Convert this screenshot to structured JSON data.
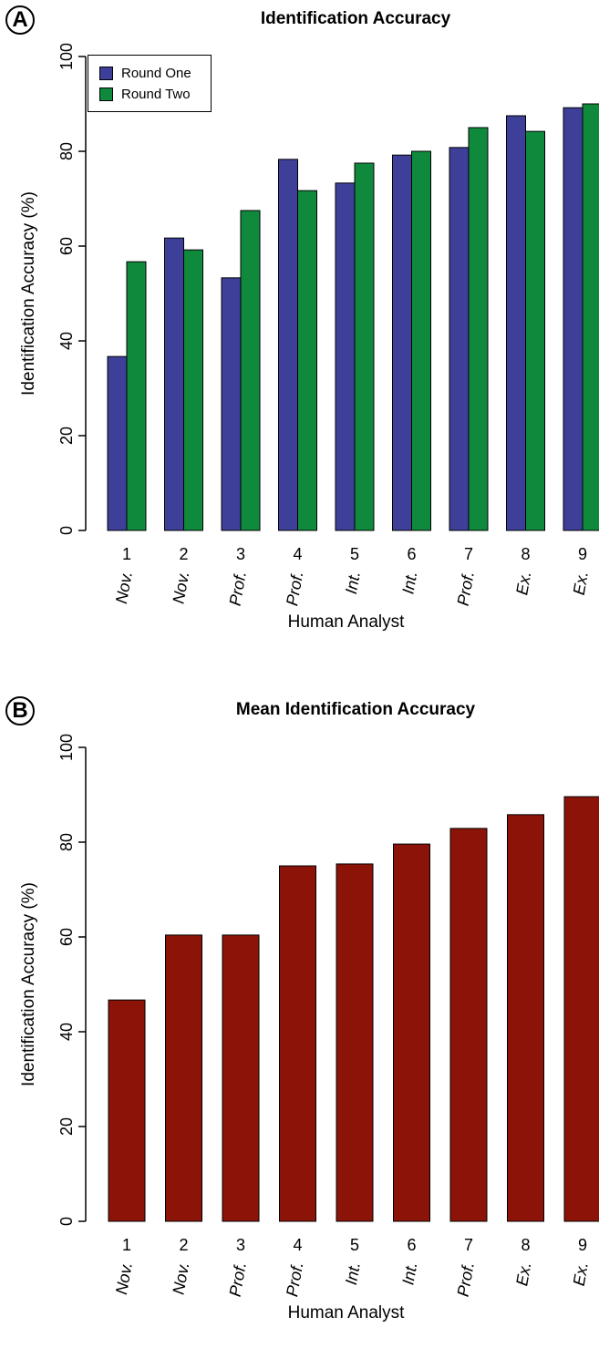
{
  "colors": {
    "round_one": "#3e3f98",
    "round_two": "#0f8a3c",
    "mean": "#8b1308"
  },
  "chart_data": [
    {
      "panel": "A",
      "type": "bar",
      "title": "Identification Accuracy",
      "xlabel": "Human Analyst",
      "ylabel": "Identification Accuracy (%)",
      "ylim": [
        0,
        100
      ],
      "yticks": [
        "0",
        "20",
        "40",
        "60",
        "80",
        "100"
      ],
      "categories": [
        "1",
        "2",
        "3",
        "4",
        "5",
        "6",
        "7",
        "8",
        "9"
      ],
      "category_sublabels": [
        "Nov.",
        "Nov.",
        "Prof.",
        "Prof.",
        "Int.",
        "Int.",
        "Prof.",
        "Ex.",
        "Ex."
      ],
      "legend_position": "top-left",
      "series": [
        {
          "name": "Round One",
          "values": [
            36.7,
            61.7,
            53.3,
            78.3,
            73.3,
            79.2,
            80.8,
            87.5,
            89.2
          ]
        },
        {
          "name": "Round Two",
          "values": [
            56.7,
            59.2,
            67.5,
            71.7,
            77.5,
            80.0,
            85.0,
            84.2,
            90.0
          ]
        }
      ]
    },
    {
      "panel": "B",
      "type": "bar",
      "title": "Mean Identification Accuracy",
      "xlabel": "Human Analyst",
      "ylabel": "Identification Accuracy (%)",
      "ylim": [
        0,
        100
      ],
      "yticks": [
        "0",
        "20",
        "40",
        "60",
        "80",
        "100"
      ],
      "categories": [
        "1",
        "2",
        "3",
        "4",
        "5",
        "6",
        "7",
        "8",
        "9"
      ],
      "category_sublabels": [
        "Nov.",
        "Nov.",
        "Prof.",
        "Prof.",
        "Int.",
        "Int.",
        "Prof.",
        "Ex.",
        "Ex."
      ],
      "values": [
        46.7,
        60.4,
        60.4,
        75.0,
        75.4,
        79.6,
        82.9,
        85.8,
        89.6
      ]
    }
  ]
}
